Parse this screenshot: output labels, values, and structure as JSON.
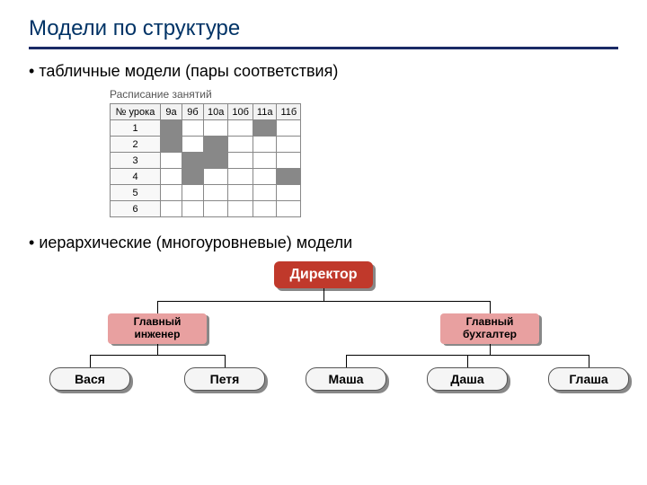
{
  "title": "Модели по структуре",
  "bullet1": "табличные модели (пары соответствия)",
  "bullet2": "иерархические (многоуровневые) модели",
  "table": {
    "caption": "Расписание занятий",
    "headers": [
      "№ урока",
      "9а",
      "9б",
      "10а",
      "10б",
      "11а",
      "11б"
    ],
    "rows": [
      {
        "num": "1",
        "cells": [
          true,
          false,
          false,
          false,
          true,
          false
        ]
      },
      {
        "num": "2",
        "cells": [
          true,
          false,
          true,
          false,
          false,
          false
        ]
      },
      {
        "num": "3",
        "cells": [
          false,
          true,
          true,
          false,
          false,
          false
        ]
      },
      {
        "num": "4",
        "cells": [
          false,
          true,
          false,
          false,
          false,
          true
        ]
      },
      {
        "num": "5",
        "cells": [
          false,
          false,
          false,
          false,
          false,
          false
        ]
      },
      {
        "num": "6",
        "cells": [
          false,
          false,
          false,
          false,
          false,
          false
        ]
      }
    ],
    "filled_color": "#888888",
    "border_color": "#888888"
  },
  "hierarchy": {
    "root": "Директор",
    "root_color": "#c0392b",
    "mid_color": "#e8a0a0",
    "leaf_bg": "#f5f5f5",
    "mid": [
      {
        "label": "Главный\nинженер"
      },
      {
        "label": "Главный\nбухгалтер"
      }
    ],
    "leaves": [
      "Вася",
      "Петя",
      "Маша",
      "Даша",
      "Глаша"
    ]
  }
}
